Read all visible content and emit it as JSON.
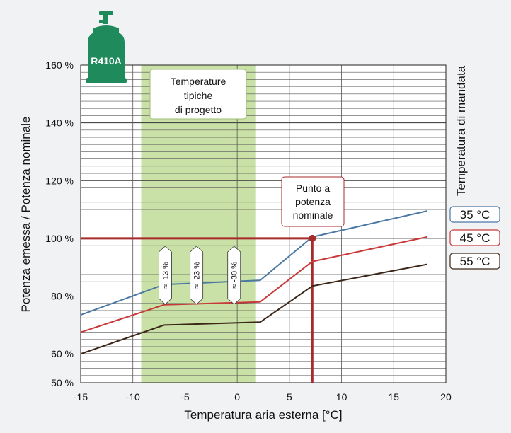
{
  "chart_data": {
    "type": "line",
    "x_label": "Temperatura aria esterna [°C]",
    "y_label": "Potenza emessa / Potenza nominale",
    "right_label": "Temperatura di mandata",
    "xlim": [
      -15,
      20
    ],
    "ylim": [
      50,
      160
    ],
    "x_ticks": [
      -15,
      -10,
      -5,
      0,
      5,
      10,
      15,
      20
    ],
    "x_tick_labels": [
      "-15",
      "-10",
      "-5",
      "0",
      "5",
      "10",
      "15",
      "20"
    ],
    "y_ticks": [
      50,
      60,
      80,
      100,
      120,
      140,
      160
    ],
    "y_tick_labels": [
      "50 %",
      "60 %",
      "80 %",
      "100 %",
      "120 %",
      "140 %",
      "160 %"
    ],
    "minor_grid_step_y": 2.5,
    "x_grid_step": 5,
    "refrigerant": "R410A",
    "shaded_band": {
      "x_from": -9.2,
      "x_to": 1.8,
      "color": "#c9e1a6"
    },
    "design_box_lines": [
      "Temperature",
      "tipiche",
      "di progetto"
    ],
    "nominal_box_lines": [
      "Punto a",
      "potenza",
      "nominale"
    ],
    "nominal_point": {
      "x": 7.2,
      "y": 100,
      "color": "#a72b2b"
    },
    "series": [
      {
        "name": "35 °C",
        "color": "#4a78a3",
        "points": [
          [
            -15,
            73.5
          ],
          [
            -7,
            84
          ],
          [
            2.2,
            85.5
          ],
          [
            7.2,
            100.5
          ],
          [
            18.2,
            109.5
          ]
        ]
      },
      {
        "name": "45 °C",
        "color": "#c83a3a",
        "points": [
          [
            -15,
            67.5
          ],
          [
            -7,
            77
          ],
          [
            2.2,
            78
          ],
          [
            7.2,
            92
          ],
          [
            18.2,
            100.5
          ]
        ]
      },
      {
        "name": "55 °C",
        "color": "#3b2617",
        "points": [
          [
            -15,
            60
          ],
          [
            -7,
            70
          ],
          [
            2.2,
            71
          ],
          [
            7.2,
            83.5
          ],
          [
            18.2,
            91
          ]
        ]
      }
    ],
    "annotations": [
      {
        "text": "≈ -13 %",
        "x": -6.9
      },
      {
        "text": "≈ -23 %",
        "x": -3.9
      },
      {
        "text": "≈ -30 %",
        "x": -0.3
      }
    ]
  }
}
